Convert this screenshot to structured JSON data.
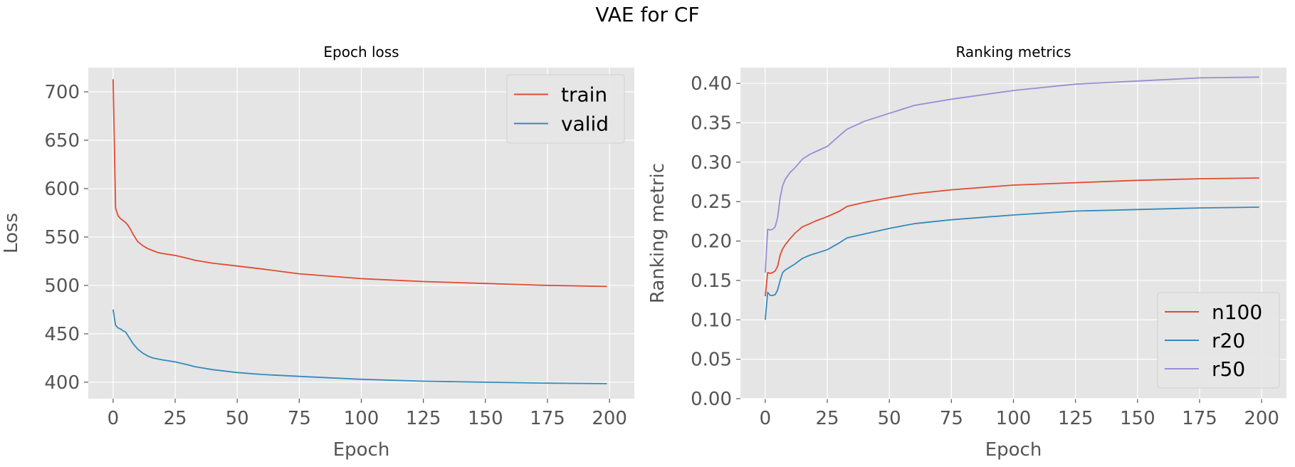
{
  "figure": {
    "suptitle": "VAE for CF"
  },
  "colors": {
    "train": "#E24A33",
    "valid": "#348ABD",
    "n100": "#E24A33",
    "r20": "#348ABD",
    "r50": "#988ED5",
    "background": "#E5E5E5",
    "grid": "#FFFFFF",
    "tick_text": "#555555"
  },
  "chart_data": [
    {
      "type": "line",
      "title": "Epoch loss",
      "xlabel": "Epoch",
      "ylabel": "Loss",
      "xlim": [
        -10,
        210
      ],
      "ylim": [
        383,
        725
      ],
      "xticks": [
        0,
        25,
        50,
        75,
        100,
        125,
        150,
        175,
        200
      ],
      "yticks": [
        400,
        450,
        500,
        550,
        600,
        650,
        700
      ],
      "grid": true,
      "legend_position": "upper right",
      "series": [
        {
          "name": "train",
          "x": [
            0,
            1,
            2,
            3,
            4,
            5,
            6,
            7,
            8,
            9,
            10,
            12,
            14,
            16,
            18,
            20,
            25,
            30,
            33,
            40,
            50,
            60,
            75,
            100,
            125,
            150,
            175,
            199
          ],
          "y": [
            713,
            580,
            572,
            569,
            567,
            565,
            562,
            558,
            553,
            549,
            545,
            541,
            538,
            536,
            534,
            533,
            531,
            528,
            526,
            523,
            520,
            517,
            512,
            507,
            504,
            502,
            500,
            499
          ]
        },
        {
          "name": "valid",
          "x": [
            0,
            1,
            2,
            3,
            4,
            5,
            6,
            7,
            8,
            9,
            10,
            12,
            14,
            16,
            18,
            20,
            25,
            30,
            33,
            40,
            50,
            60,
            75,
            100,
            125,
            150,
            175,
            199
          ],
          "y": [
            475,
            459,
            456,
            455,
            453,
            452,
            448,
            444,
            440,
            437,
            434,
            430,
            427,
            425,
            424,
            423,
            421,
            418,
            416,
            413,
            410,
            408,
            406,
            403,
            401,
            400,
            399,
            398.5
          ]
        }
      ]
    },
    {
      "type": "line",
      "title": "Ranking metrics",
      "xlabel": "Epoch",
      "ylabel": "Ranking metric",
      "xlim": [
        -10,
        210
      ],
      "ylim": [
        0.0,
        0.42
      ],
      "xticks": [
        0,
        25,
        50,
        75,
        100,
        125,
        150,
        175,
        200
      ],
      "yticks": [
        0.0,
        0.05,
        0.1,
        0.15,
        0.2,
        0.25,
        0.3,
        0.35,
        0.4
      ],
      "grid": true,
      "legend_position": "lower right",
      "series": [
        {
          "name": "n100",
          "x": [
            0,
            1,
            2,
            3,
            4,
            5,
            6,
            7,
            8,
            10,
            12,
            15,
            18,
            20,
            25,
            30,
            33,
            40,
            50,
            60,
            75,
            100,
            125,
            150,
            175,
            199
          ],
          "y": [
            0.13,
            0.16,
            0.159,
            0.16,
            0.162,
            0.168,
            0.182,
            0.19,
            0.195,
            0.203,
            0.21,
            0.218,
            0.222,
            0.225,
            0.231,
            0.238,
            0.244,
            0.249,
            0.255,
            0.26,
            0.265,
            0.271,
            0.274,
            0.277,
            0.279,
            0.28
          ]
        },
        {
          "name": "r20",
          "x": [
            0,
            1,
            2,
            3,
            4,
            5,
            6,
            7,
            8,
            10,
            12,
            15,
            18,
            20,
            25,
            30,
            33,
            40,
            50,
            60,
            75,
            100,
            125,
            150,
            175,
            199
          ],
          "y": [
            0.1,
            0.135,
            0.131,
            0.131,
            0.132,
            0.138,
            0.15,
            0.16,
            0.163,
            0.167,
            0.171,
            0.178,
            0.182,
            0.184,
            0.189,
            0.198,
            0.204,
            0.209,
            0.216,
            0.222,
            0.227,
            0.233,
            0.238,
            0.24,
            0.242,
            0.243
          ]
        },
        {
          "name": "r50",
          "x": [
            0,
            1,
            2,
            3,
            4,
            5,
            6,
            7,
            8,
            10,
            12,
            15,
            18,
            20,
            25,
            30,
            33,
            40,
            50,
            60,
            75,
            100,
            125,
            150,
            175,
            199
          ],
          "y": [
            0.16,
            0.215,
            0.214,
            0.215,
            0.218,
            0.23,
            0.255,
            0.27,
            0.278,
            0.287,
            0.293,
            0.304,
            0.31,
            0.313,
            0.32,
            0.334,
            0.342,
            0.352,
            0.362,
            0.372,
            0.38,
            0.391,
            0.399,
            0.403,
            0.407,
            0.408
          ]
        }
      ]
    }
  ]
}
